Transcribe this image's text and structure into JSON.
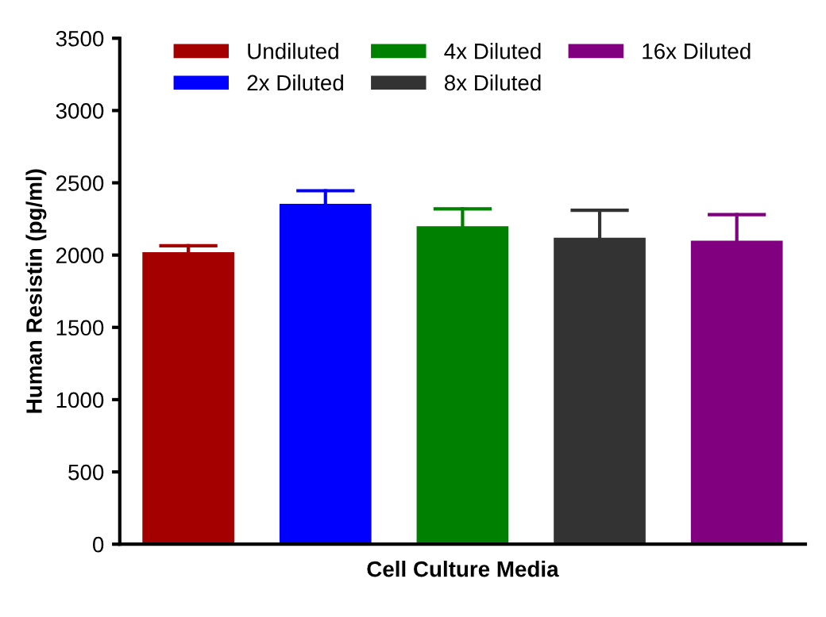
{
  "chart_data": {
    "type": "bar",
    "xlabel": "Cell Culture Media",
    "ylabel": "Human Resistin (pg/ml)",
    "categories": [
      null
    ],
    "series": [
      {
        "name": "Undiluted",
        "color": "#a50000",
        "values": [
          2020
        ],
        "errors": [
          [
            2020,
            2065
          ]
        ]
      },
      {
        "name": "2x Diluted",
        "color": "#0000ff",
        "values": [
          2355
        ],
        "errors": [
          [
            2355,
            2445
          ]
        ]
      },
      {
        "name": "4x Diluted",
        "color": "#008000",
        "values": [
          2200
        ],
        "errors": [
          [
            2200,
            2320
          ]
        ]
      },
      {
        "name": "8x Diluted",
        "color": "#333333",
        "values": [
          2120
        ],
        "errors": [
          [
            2120,
            2310
          ]
        ]
      },
      {
        "name": "16x Diluted",
        "color": "#800080",
        "values": [
          2100
        ],
        "errors": [
          [
            2100,
            2280
          ]
        ]
      }
    ],
    "ylim": [
      0,
      3500
    ],
    "yticks": [
      0,
      500,
      1000,
      1500,
      2000,
      2500,
      3000,
      3500
    ],
    "grid": false,
    "legend": "top"
  }
}
